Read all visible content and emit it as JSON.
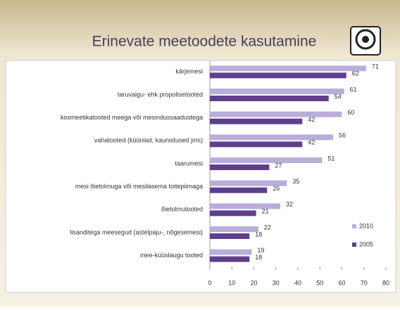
{
  "chart_data": {
    "type": "bar",
    "orientation": "horizontal",
    "title": "Erinevate meetoodete kasutamine",
    "categories": [
      "kärjemesi",
      "taruvaigu- ehk propolisetooted",
      "kosmeetikatooted meega või mesindussaadustega",
      "vahatooted (küünlad, kaunistused jms)",
      "taarumesi",
      "mesi õietolmuga või mesilasema toitepiimaga",
      "õietolmutooted",
      "lisanditega meesegud (astelpaju-, nõgesemesi)",
      "mee-küüslaugu tooted"
    ],
    "series": [
      {
        "name": "2010",
        "color": "#b9aedb",
        "values": [
          71,
          61,
          60,
          56,
          51,
          35,
          32,
          22,
          19
        ]
      },
      {
        "name": "2005",
        "color": "#5d3f8e",
        "values": [
          62,
          54,
          42,
          42,
          27,
          26,
          21,
          18,
          18
        ]
      }
    ],
    "xlim": [
      0,
      80
    ],
    "xticks": [
      0,
      10,
      20,
      30,
      40,
      50,
      60,
      70,
      80
    ],
    "grid": false,
    "legend": "right"
  }
}
